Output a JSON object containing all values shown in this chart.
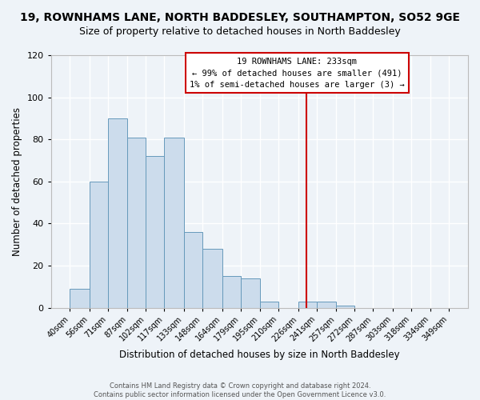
{
  "title": "19, ROWNHAMS LANE, NORTH BADDESLEY, SOUTHAMPTON, SO52 9GE",
  "subtitle": "Size of property relative to detached houses in North Baddesley",
  "xlabel": "Distribution of detached houses by size in North Baddesley",
  "ylabel": "Number of detached properties",
  "bin_edges": [
    40,
    56,
    71,
    87,
    102,
    117,
    133,
    148,
    164,
    179,
    195,
    210,
    226,
    241,
    257,
    272,
    287,
    303,
    318,
    334,
    349
  ],
  "bar_heights": [
    9,
    60,
    90,
    81,
    72,
    81,
    36,
    28,
    15,
    14,
    3,
    0,
    3,
    3,
    1,
    0,
    0,
    0,
    0,
    0
  ],
  "bar_color": "#ccdcec",
  "bar_edge_color": "#6699bb",
  "red_line_x": 233,
  "ylim_max": 120,
  "yticks": [
    0,
    20,
    40,
    60,
    80,
    100,
    120
  ],
  "annotation_title": "19 ROWNHAMS LANE: 233sqm",
  "annotation_line1": "← 99% of detached houses are smaller (491)",
  "annotation_line2": "1% of semi-detached houses are larger (3) →",
  "annotation_box_facecolor": "#ffffff",
  "annotation_border_color": "#cc0000",
  "footer1": "Contains HM Land Registry data © Crown copyright and database right 2024.",
  "footer2": "Contains public sector information licensed under the Open Government Licence v3.0.",
  "background_color": "#eef3f8",
  "grid_color": "#ffffff",
  "title_fontsize": 10,
  "subtitle_fontsize": 9,
  "axis_label_fontsize": 8.5,
  "tick_fontsize": 7,
  "footer_fontsize": 6
}
